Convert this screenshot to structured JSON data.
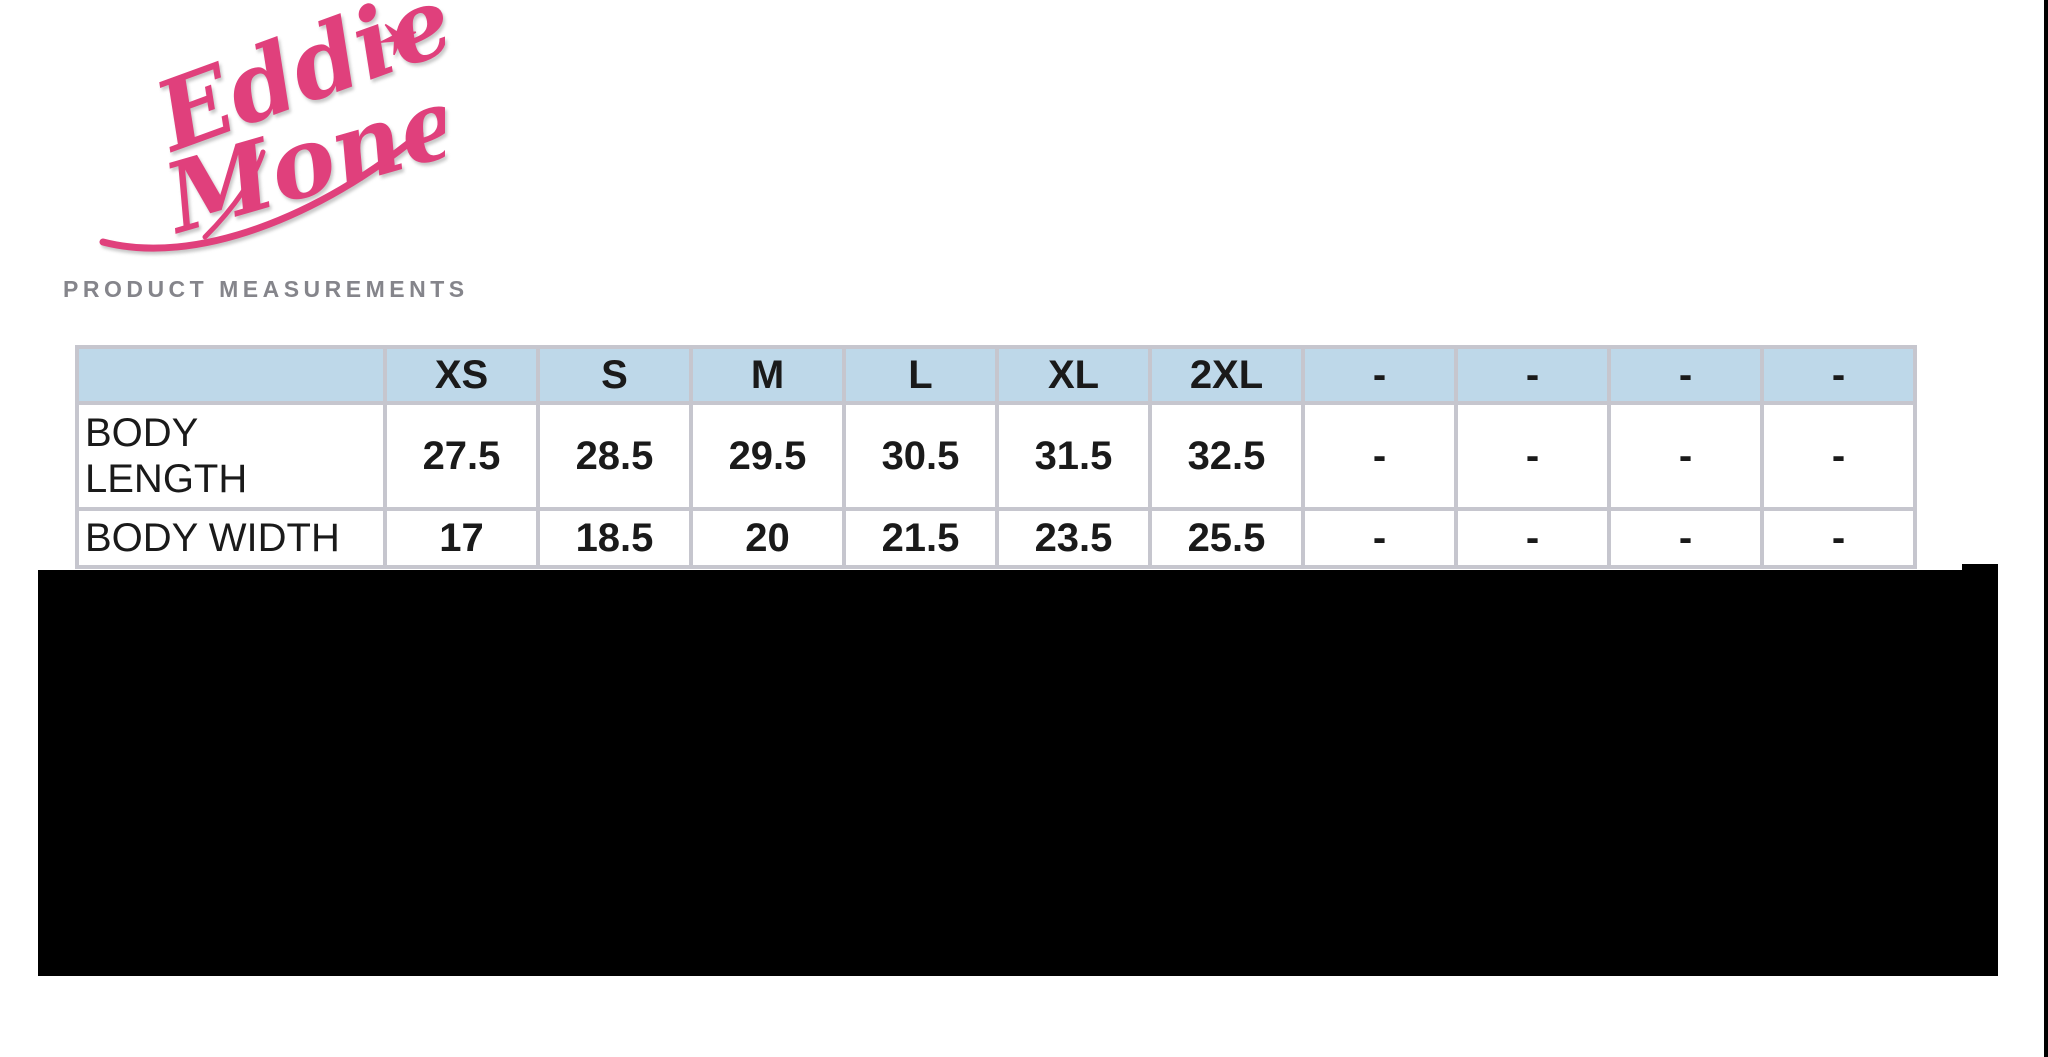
{
  "logo": {
    "text": "Eddie Money",
    "line1": "Eddie",
    "line2": "Money",
    "color": "#e0407c",
    "star_icon": "✶"
  },
  "heading": {
    "text": "PRODUCT MEASUREMENTS",
    "color": "#85858b"
  },
  "size_table": {
    "header_bg": "#bed8e9",
    "border_color": "#c6c6ce",
    "columns": [
      "",
      "XS",
      "S",
      "M",
      "L",
      "XL",
      "2XL",
      "-",
      "-",
      "-",
      "-"
    ],
    "rows": [
      {
        "label_lines": [
          "BODY",
          "LENGTH"
        ],
        "values": [
          "27.5",
          "28.5",
          "29.5",
          "30.5",
          "31.5",
          "32.5",
          "-",
          "-",
          "-",
          "-"
        ]
      },
      {
        "label_lines": [
          "BODY WIDTH"
        ],
        "values": [
          "17",
          "18.5",
          "20",
          "21.5",
          "23.5",
          "25.5",
          "-",
          "-",
          "-",
          "-"
        ]
      }
    ]
  },
  "redaction": {
    "color": "#000000"
  }
}
